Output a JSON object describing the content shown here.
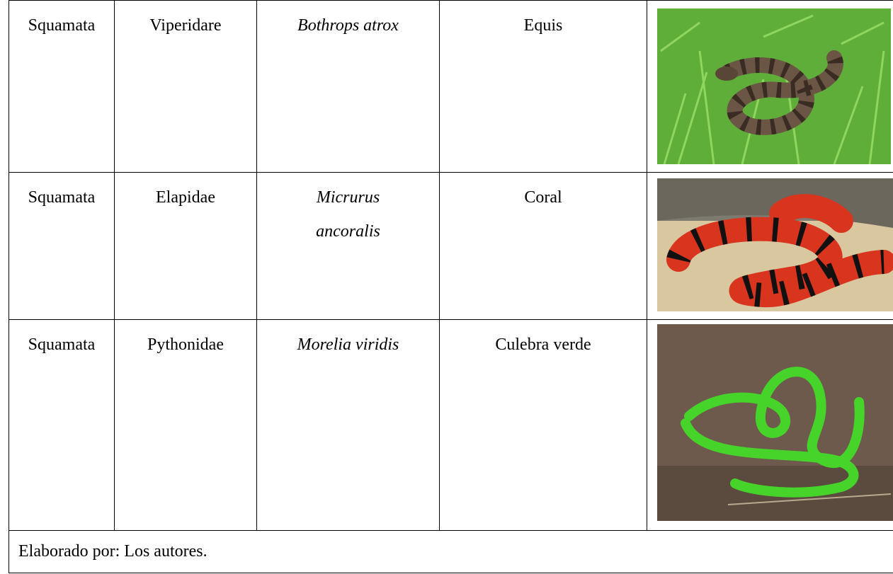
{
  "table": {
    "rows": [
      [
        "Squamata",
        "Viperidare",
        "Bothrops atrox",
        "Equis"
      ],
      [
        "Squamata",
        "Elapidae",
        "Micrurus ancoralis",
        "Coral"
      ],
      [
        "Squamata",
        "Pythonidae",
        "Morelia viridis",
        "Culebra verde"
      ]
    ],
    "footer": "Elaborado por: Los autores."
  }
}
